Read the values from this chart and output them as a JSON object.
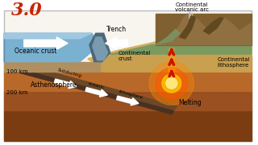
{
  "bg_color": "#ffffff",
  "labels": {
    "oceanic_crust": "Oceanic crust",
    "continental_crust": "Continental\ncrust",
    "continental_lithosphere": "Continental\nlithosphere",
    "asthenosphere": "Asthenosphere",
    "trench": "Trench",
    "melting": "Melting",
    "volcanic_arc": "Continental\nvolcanic arc",
    "depth_100": "100 km",
    "depth_200": "200 km",
    "annotation": "3.0"
  },
  "colors": {
    "ocean_water_deep": "#6aa8c8",
    "ocean_water_light": "#a8d0e8",
    "oceanic_crust_brown": "#b09070",
    "mantle_dark": "#8B4513",
    "mantle_mid": "#a0622a",
    "mantle_light": "#c8803c",
    "asthen_color": "#c07838",
    "cont_crust_tan": "#c8a868",
    "cont_surface_green": "#8aaa78",
    "mountain_brown": "#907040",
    "mountain_dark": "#604820",
    "slab_color": "#907060",
    "trench_dark": "#405060",
    "white_arrow": "#ffffff",
    "red_arrow": "#cc1100",
    "orange_glow": "#ff7700",
    "yellow_glow": "#ffcc00",
    "annotation_red": "#cc2200",
    "text_dark": "#111111",
    "border": "#cccccc"
  }
}
